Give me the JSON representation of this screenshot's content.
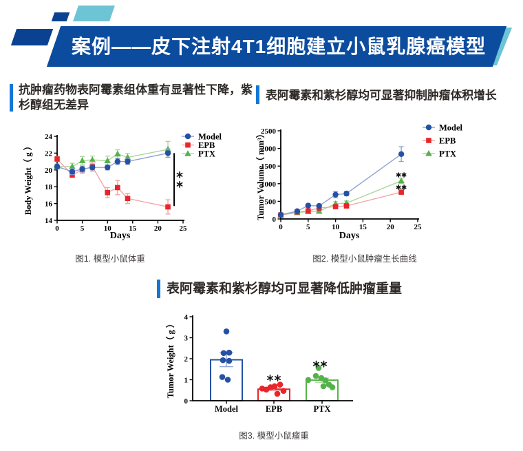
{
  "header": {
    "title": "案例——皮下注射4T1细胞建立小鼠乳腺癌模型",
    "banner_color": "#0c4c9e",
    "deco_navy_color": "#0a4191",
    "deco_teal_color": "#6cc4d5"
  },
  "section_titles": {
    "accent_bar_color": "#1377d6",
    "left": "抗肿瘤药物表阿霉素组体重有显著性下降，紫杉醇组无差异",
    "right": "表阿霉素和紫杉醇均可显著抑制肿瘤体积增长",
    "bottom": "表阿霉素和紫杉醇均可显著降低肿瘤重量"
  },
  "captions": {
    "fig1": "图1. 模型小鼠体重",
    "fig2": "图2. 模型小鼠肿瘤生长曲线",
    "fig3": "图3. 模型小鼠瘤重"
  },
  "series_colors": {
    "Model": "#2451a4",
    "EPB": "#e8252a",
    "PTX": "#55b24b"
  },
  "chart_data": [
    {
      "id": "fig1",
      "type": "line",
      "title": "",
      "xlabel": "Days",
      "ylabel": "Body Weight（ g ）",
      "xlim": [
        0,
        25
      ],
      "ylim": [
        14,
        24
      ],
      "xticks": [
        0,
        5,
        10,
        15,
        20,
        25
      ],
      "yticks": [
        14,
        16,
        18,
        20,
        22,
        24
      ],
      "legend_position": "right-top",
      "x": [
        0,
        3,
        5,
        7,
        10,
        12,
        14,
        22
      ],
      "series": [
        {
          "name": "Model",
          "marker": "circle",
          "color": "#2451a4",
          "line_color": "#8fa2d4",
          "values": [
            20.4,
            19.8,
            20.1,
            20.3,
            20.3,
            21.0,
            21.0,
            22.0
          ],
          "err": [
            0.3,
            0.35,
            0.35,
            0.3,
            0.3,
            0.35,
            0.35,
            0.5
          ]
        },
        {
          "name": "EPB",
          "marker": "square",
          "color": "#e8252a",
          "line_color": "#f3a5a6",
          "values": [
            21.3,
            19.4,
            20.0,
            20.4,
            17.3,
            17.9,
            16.6,
            15.6
          ],
          "err": [
            0.3,
            0.3,
            0.45,
            0.55,
            0.6,
            0.85,
            0.6,
            0.85
          ]
        },
        {
          "name": "PTX",
          "marker": "triangle",
          "color": "#55b24b",
          "line_color": "#abd79c",
          "values": [
            20.4,
            20.4,
            21.1,
            21.2,
            21.1,
            21.9,
            21.5,
            22.45
          ],
          "err": [
            0.3,
            0.4,
            0.5,
            0.45,
            0.55,
            0.5,
            0.45,
            0.95
          ]
        }
      ],
      "annotations": [
        {
          "type": "bracket",
          "x_day": 22,
          "from": 22.0,
          "to": 15.7,
          "label": "**"
        }
      ]
    },
    {
      "id": "fig2",
      "type": "line",
      "title": "",
      "xlabel": "Days",
      "ylabel": "Tumor Volume（ mm³）",
      "xlim": [
        0,
        25
      ],
      "ylim": [
        0,
        2500
      ],
      "xticks": [
        0,
        5,
        10,
        15,
        20,
        25
      ],
      "yticks": [
        0,
        500,
        1000,
        1500,
        2000,
        2500
      ],
      "legend_position": "right-top",
      "x": [
        0,
        3,
        5,
        7,
        10,
        12,
        22
      ],
      "series": [
        {
          "name": "Model",
          "marker": "circle",
          "color": "#2451a4",
          "line_color": "#8fa2d4",
          "values": [
            120,
            220,
            380,
            370,
            690,
            720,
            1840
          ],
          "err": [
            30,
            40,
            50,
            50,
            90,
            60,
            210
          ]
        },
        {
          "name": "EPB",
          "marker": "square",
          "color": "#e8252a",
          "line_color": "#f3a5a6",
          "values": [
            110,
            200,
            230,
            310,
            350,
            370,
            760
          ],
          "err": [
            20,
            30,
            30,
            40,
            40,
            40,
            60
          ]
        },
        {
          "name": "PTX",
          "marker": "triangle",
          "color": "#55b24b",
          "line_color": "#abd79c",
          "values": [
            110,
            180,
            210,
            220,
            430,
            450,
            1080
          ],
          "err": [
            20,
            30,
            30,
            30,
            60,
            60,
            80
          ]
        }
      ],
      "annotations": [
        {
          "type": "stars",
          "x_day": 22,
          "value": 1250,
          "label": "**"
        },
        {
          "type": "stars",
          "x_day": 22,
          "value": 900,
          "label": "**"
        }
      ]
    },
    {
      "id": "fig3",
      "type": "bar-scatter",
      "title": "",
      "xlabel": "",
      "ylabel": "Tumor Weight（ g ）",
      "ylim": [
        0,
        4
      ],
      "yticks": [
        0,
        1,
        2,
        3,
        4
      ],
      "categories": [
        "Model",
        "EPB",
        "PTX"
      ],
      "bars": [
        {
          "name": "Model",
          "color": "#2451a4",
          "err_color": "#8fa2d4",
          "value": 1.95,
          "err": 0.33,
          "points": [
            {
              "dx": 0,
              "v": 3.3
            },
            {
              "dx": -4,
              "v": 2.27
            },
            {
              "dx": 4,
              "v": 2.29
            },
            {
              "dx": -5,
              "v": 1.93
            },
            {
              "dx": 4,
              "v": 1.9
            },
            {
              "dx": -6,
              "v": 1.13
            },
            {
              "dx": 2,
              "v": 1.0
            }
          ]
        },
        {
          "name": "EPB",
          "color": "#e8252a",
          "err_color": "#f3a5a6",
          "value": 0.55,
          "err": 0.07,
          "points": [
            {
              "dx": -17,
              "v": 0.58
            },
            {
              "dx": -11,
              "v": 0.53
            },
            {
              "dx": -5,
              "v": 0.64
            },
            {
              "dx": 1,
              "v": 0.69
            },
            {
              "dx": 9,
              "v": 0.77
            },
            {
              "dx": 5,
              "v": 0.33
            },
            {
              "dx": 14,
              "v": 0.47
            }
          ]
        },
        {
          "name": "PTX",
          "color": "#55b24b",
          "err_color": "#abd79c",
          "value": 0.98,
          "err": 0.1,
          "points": [
            {
              "dx": -5,
              "v": 1.56
            },
            {
              "dx": -9,
              "v": 1.18
            },
            {
              "dx": -20,
              "v": 0.99
            },
            {
              "dx": -1,
              "v": 1.08
            },
            {
              "dx": 5,
              "v": 0.97
            },
            {
              "dx": 10,
              "v": 0.77
            },
            {
              "dx": 2,
              "v": 0.69
            },
            {
              "dx": 15,
              "v": 0.64
            }
          ]
        }
      ],
      "annotations": [
        {
          "type": "stars",
          "category": "EPB",
          "dx": 0,
          "value": 1.08,
          "label": "**"
        },
        {
          "type": "stars",
          "category": "PTX",
          "dx": -3,
          "value": 1.75,
          "label": "**"
        }
      ]
    }
  ]
}
